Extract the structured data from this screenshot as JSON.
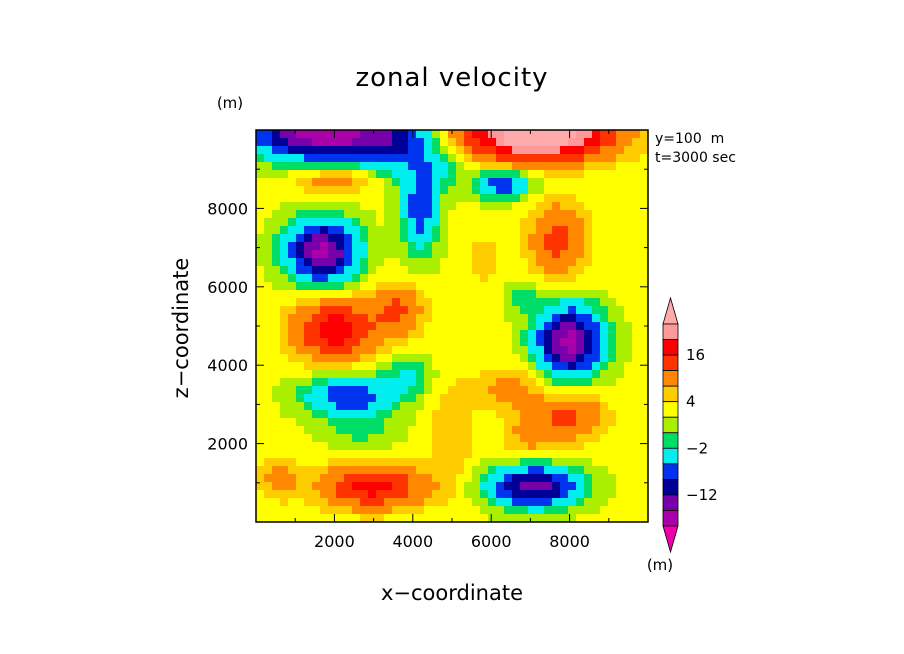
{
  "chart_data": {
    "type": "heatmap",
    "title": "zonal velocity",
    "xlabel": "x−coordinate",
    "ylabel": "z−coordinate",
    "x_unit": "(m)",
    "y_unit": "(m)",
    "annotation_lines": [
      "y=100  m",
      "t=3000 sec"
    ],
    "xlim": [
      0,
      10000
    ],
    "ylim": [
      0,
      10000
    ],
    "x_ticks": [
      2000,
      4000,
      6000,
      8000
    ],
    "x_tick_labels": [
      "2000",
      "4000",
      "6000",
      "8000"
    ],
    "y_ticks": [
      2000,
      4000,
      6000,
      8000
    ],
    "y_tick_labels": [
      "2000",
      "4000",
      "6000",
      "8000"
    ],
    "colorbar": {
      "unit": "(m)",
      "levels": [
        -20,
        -16,
        -12,
        -8,
        -4,
        -2,
        0,
        2,
        4,
        8,
        12,
        16,
        20
      ],
      "labels": [
        {
          "level": 16,
          "text": "16"
        },
        {
          "level": 4,
          "text": "4"
        },
        {
          "level": -2,
          "text": "−2"
        },
        {
          "level": -12,
          "text": "−12"
        }
      ],
      "colors": [
        "#ee00aa",
        "#aa00aa",
        "#7700aa",
        "#000099",
        "#0033ee",
        "#00eeee",
        "#00dd66",
        "#aaee00",
        "#ffff00",
        "#ffcc00",
        "#ff8800",
        "#ff3300",
        "#ff0000",
        "#ff9999",
        "#ffaaaa"
      ]
    },
    "field": {
      "base": 0.5,
      "features": [
        {
          "x": 1800,
          "y": 9900,
          "amp": -24,
          "sx": 1800,
          "sy": 650
        },
        {
          "x": 3700,
          "y": 9600,
          "amp": -8,
          "sx": 900,
          "sy": 800
        },
        {
          "x": 7200,
          "y": 9900,
          "amp": 26,
          "sx": 1800,
          "sy": 650
        },
        {
          "x": 2000,
          "y": 8700,
          "amp": 6,
          "sx": 1000,
          "sy": 300
        },
        {
          "x": 1700,
          "y": 6900,
          "amp": -22,
          "sx": 850,
          "sy": 750
        },
        {
          "x": 4200,
          "y": 8000,
          "amp": -11,
          "sx": 450,
          "sy": 1100
        },
        {
          "x": 4800,
          "y": 9000,
          "amp": -4,
          "sx": 500,
          "sy": 500
        },
        {
          "x": 6300,
          "y": 8600,
          "amp": -11,
          "sx": 700,
          "sy": 350
        },
        {
          "x": 7700,
          "y": 7200,
          "amp": 9,
          "sx": 700,
          "sy": 900
        },
        {
          "x": 5800,
          "y": 6700,
          "amp": 3,
          "sx": 400,
          "sy": 600
        },
        {
          "x": 2000,
          "y": 4900,
          "amp": 14,
          "sx": 1000,
          "sy": 750
        },
        {
          "x": 3600,
          "y": 5400,
          "amp": 8,
          "sx": 650,
          "sy": 650
        },
        {
          "x": 8000,
          "y": 4600,
          "amp": -22,
          "sx": 800,
          "sy": 850
        },
        {
          "x": 6800,
          "y": 5700,
          "amp": -4,
          "sx": 400,
          "sy": 400
        },
        {
          "x": 2400,
          "y": 3200,
          "amp": -12,
          "sx": 1100,
          "sy": 500
        },
        {
          "x": 3900,
          "y": 3700,
          "amp": -5,
          "sx": 600,
          "sy": 450
        },
        {
          "x": 8000,
          "y": 2700,
          "amp": 8,
          "sx": 900,
          "sy": 600
        },
        {
          "x": 6500,
          "y": 3400,
          "amp": 5,
          "sx": 800,
          "sy": 550
        },
        {
          "x": 7000,
          "y": 2200,
          "amp": 4,
          "sx": 700,
          "sy": 600
        },
        {
          "x": 3000,
          "y": 900,
          "amp": 13,
          "sx": 1300,
          "sy": 550
        },
        {
          "x": 600,
          "y": 1100,
          "amp": 5,
          "sx": 500,
          "sy": 500
        },
        {
          "x": 7100,
          "y": 900,
          "amp": -19,
          "sx": 1100,
          "sy": 500
        },
        {
          "x": 5000,
          "y": 2300,
          "amp": 3,
          "sx": 600,
          "sy": 1500
        },
        {
          "x": 2700,
          "y": 2300,
          "amp": -3,
          "sx": 1000,
          "sy": 400
        }
      ]
    }
  }
}
